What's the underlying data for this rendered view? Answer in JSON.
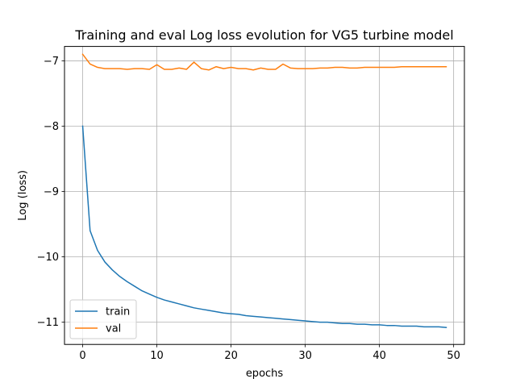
{
  "chart_data": {
    "type": "line",
    "title": "Training and eval Log loss evolution for VG5 turbine model",
    "xlabel": "epochs",
    "ylabel": "Log (loss)",
    "xlim": [
      -2.45,
      51.45
    ],
    "ylim": [
      -11.34,
      -6.78
    ],
    "xticks": [
      0,
      10,
      20,
      30,
      40,
      50
    ],
    "xtick_labels": [
      "0",
      "10",
      "20",
      "30",
      "40",
      "50"
    ],
    "yticks": [
      -11,
      -10,
      -9,
      -8,
      -7
    ],
    "ytick_labels": [
      "−11",
      "−10",
      "−9",
      "−8",
      "−7"
    ],
    "grid": true,
    "legend_position": "lower-left",
    "series": [
      {
        "name": "train",
        "color": "#1f77b4",
        "x": [
          0,
          1,
          2,
          3,
          4,
          5,
          6,
          7,
          8,
          9,
          10,
          11,
          12,
          13,
          14,
          15,
          16,
          17,
          18,
          19,
          20,
          21,
          22,
          23,
          24,
          25,
          26,
          27,
          28,
          29,
          30,
          31,
          32,
          33,
          34,
          35,
          36,
          37,
          38,
          39,
          40,
          41,
          42,
          43,
          44,
          45,
          46,
          47,
          48,
          49
        ],
        "values": [
          -8.0,
          -9.6,
          -9.9,
          -10.08,
          -10.2,
          -10.3,
          -10.38,
          -10.45,
          -10.52,
          -10.57,
          -10.62,
          -10.66,
          -10.69,
          -10.72,
          -10.75,
          -10.78,
          -10.8,
          -10.82,
          -10.84,
          -10.86,
          -10.87,
          -10.88,
          -10.9,
          -10.91,
          -10.92,
          -10.93,
          -10.94,
          -10.95,
          -10.96,
          -10.97,
          -10.98,
          -10.99,
          -11.0,
          -11.0,
          -11.01,
          -11.02,
          -11.02,
          -11.03,
          -11.03,
          -11.04,
          -11.04,
          -11.05,
          -11.05,
          -11.06,
          -11.06,
          -11.06,
          -11.07,
          -11.07,
          -11.07,
          -11.08
        ]
      },
      {
        "name": "val",
        "color": "#ff7f0e",
        "x": [
          0,
          1,
          2,
          3,
          4,
          5,
          6,
          7,
          8,
          9,
          10,
          11,
          12,
          13,
          14,
          15,
          16,
          17,
          18,
          19,
          20,
          21,
          22,
          23,
          24,
          25,
          26,
          27,
          28,
          29,
          30,
          31,
          32,
          33,
          34,
          35,
          36,
          37,
          38,
          39,
          40,
          41,
          42,
          43,
          44,
          45,
          46,
          47,
          48,
          49
        ],
        "values": [
          -6.9,
          -7.05,
          -7.1,
          -7.12,
          -7.12,
          -7.12,
          -7.13,
          -7.12,
          -7.12,
          -7.13,
          -7.06,
          -7.13,
          -7.13,
          -7.11,
          -7.13,
          -7.02,
          -7.12,
          -7.14,
          -7.09,
          -7.12,
          -7.1,
          -7.12,
          -7.12,
          -7.14,
          -7.11,
          -7.13,
          -7.13,
          -7.05,
          -7.11,
          -7.12,
          -7.12,
          -7.12,
          -7.11,
          -7.11,
          -7.1,
          -7.1,
          -7.11,
          -7.11,
          -7.1,
          -7.1,
          -7.1,
          -7.1,
          -7.1,
          -7.09,
          -7.09,
          -7.09,
          -7.09,
          -7.09,
          -7.09,
          -7.09
        ]
      }
    ]
  }
}
